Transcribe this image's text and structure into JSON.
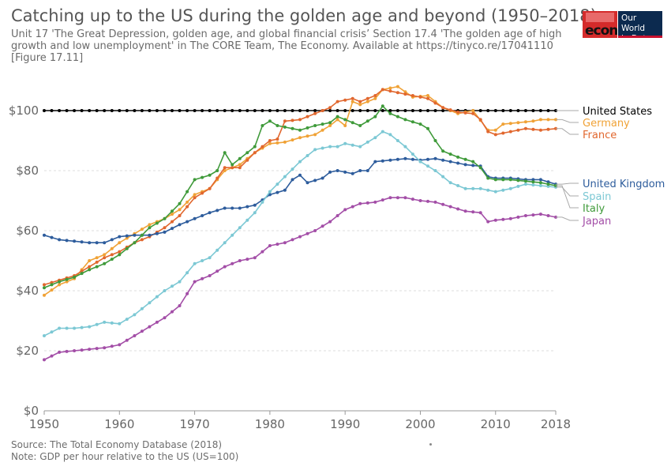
{
  "header": {
    "title": "Catching up to the US during the golden age and beyond (1950–2018)",
    "subtitle_line1": "Unit 17 'The Great Depression, golden age, and global financial crisis’ Section 17.4 'The golden age of high",
    "subtitle_line2": "growth and low unemployment' in The CORE Team, The Economy. Available at https://tinyco.re/17041110",
    "subtitle_line3": "[Figure 17.11]"
  },
  "logos": {
    "core_text": "econ",
    "owid_line1": "Our World",
    "owid_line2": "in Data"
  },
  "footer": {
    "source": "Source: The Total Economy Database (2018)",
    "note": "Note: GDP per hour relative to the US (US=100)"
  },
  "chart_data": {
    "type": "line",
    "title": "Catching up to the US during the golden age and beyond (1950–2018)",
    "xlabel": "",
    "ylabel": "",
    "xlim": [
      1950,
      2018
    ],
    "ylim": [
      0,
      105
    ],
    "x_ticks": [
      1950,
      1960,
      1970,
      1980,
      1990,
      2000,
      2010,
      2018
    ],
    "y_ticks": [
      {
        "value": 0,
        "label": "$0"
      },
      {
        "value": 20,
        "label": "$20"
      },
      {
        "value": 40,
        "label": "$40"
      },
      {
        "value": 60,
        "label": "$60"
      },
      {
        "value": 80,
        "label": "$80"
      },
      {
        "value": 100,
        "label": "$100"
      }
    ],
    "grid": "horizontal dashed",
    "legend": "right (line end labels)",
    "series": [
      {
        "name": "United States",
        "color": "#000000",
        "anchors": [
          [
            1950,
            100
          ],
          [
            2018,
            100
          ]
        ]
      },
      {
        "name": "Germany",
        "color": "#f0a236",
        "anchors": [
          [
            1950,
            38.5
          ],
          [
            1952,
            42
          ],
          [
            1954,
            44
          ],
          [
            1956,
            50
          ],
          [
            1958,
            52
          ],
          [
            1960,
            56
          ],
          [
            1962,
            59
          ],
          [
            1964,
            62
          ],
          [
            1966,
            64
          ],
          [
            1968,
            67
          ],
          [
            1970,
            72
          ],
          [
            1972,
            74
          ],
          [
            1974,
            80
          ],
          [
            1976,
            82
          ],
          [
            1978,
            86
          ],
          [
            1980,
            89
          ],
          [
            1982,
            89.5
          ],
          [
            1984,
            91
          ],
          [
            1986,
            92
          ],
          [
            1988,
            95
          ],
          [
            1989,
            97
          ],
          [
            1990,
            95
          ],
          [
            1991,
            103
          ],
          [
            1992,
            102
          ],
          [
            1994,
            104
          ],
          [
            1995,
            107
          ],
          [
            1997,
            108
          ],
          [
            1999,
            104.5
          ],
          [
            2001,
            105
          ],
          [
            2003,
            101
          ],
          [
            2005,
            99
          ],
          [
            2007,
            100
          ],
          [
            2009,
            93.5
          ],
          [
            2010,
            93.5
          ],
          [
            2011,
            95.5
          ],
          [
            2013,
            96
          ],
          [
            2015,
            96.5
          ],
          [
            2016,
            97
          ],
          [
            2018,
            97
          ]
        ]
      },
      {
        "name": "France",
        "color": "#e1672e",
        "anchors": [
          [
            1950,
            42
          ],
          [
            1952,
            43.5
          ],
          [
            1954,
            45
          ],
          [
            1956,
            48
          ],
          [
            1958,
            51
          ],
          [
            1960,
            53
          ],
          [
            1962,
            56
          ],
          [
            1964,
            58
          ],
          [
            1966,
            61
          ],
          [
            1968,
            65
          ],
          [
            1970,
            71
          ],
          [
            1972,
            74
          ],
          [
            1974,
            81
          ],
          [
            1976,
            81
          ],
          [
            1978,
            86
          ],
          [
            1980,
            90
          ],
          [
            1981,
            90.5
          ],
          [
            1982,
            96.5
          ],
          [
            1984,
            97
          ],
          [
            1986,
            99
          ],
          [
            1988,
            101
          ],
          [
            1989,
            103
          ],
          [
            1991,
            104
          ],
          [
            1992,
            103
          ],
          [
            1994,
            105
          ],
          [
            1995,
            107
          ],
          [
            1997,
            106
          ],
          [
            1999,
            105
          ],
          [
            2001,
            104
          ],
          [
            2003,
            101
          ],
          [
            2005,
            99.5
          ],
          [
            2007,
            99
          ],
          [
            2008,
            97
          ],
          [
            2009,
            93
          ],
          [
            2010,
            92
          ],
          [
            2012,
            93
          ],
          [
            2014,
            94
          ],
          [
            2016,
            93.5
          ],
          [
            2018,
            94
          ]
        ]
      },
      {
        "name": "United Kingdom",
        "color": "#2d5c9c",
        "anchors": [
          [
            1950,
            58.5
          ],
          [
            1952,
            57
          ],
          [
            1954,
            56.5
          ],
          [
            1956,
            56
          ],
          [
            1958,
            56
          ],
          [
            1960,
            58
          ],
          [
            1962,
            58.5
          ],
          [
            1964,
            58.5
          ],
          [
            1966,
            59.5
          ],
          [
            1968,
            62
          ],
          [
            1970,
            64
          ],
          [
            1972,
            66
          ],
          [
            1974,
            67.5
          ],
          [
            1976,
            67.5
          ],
          [
            1978,
            68.5
          ],
          [
            1980,
            72
          ],
          [
            1982,
            73.5
          ],
          [
            1983,
            77
          ],
          [
            1984,
            78.5
          ],
          [
            1985,
            76
          ],
          [
            1987,
            77.5
          ],
          [
            1988,
            79.5
          ],
          [
            1989,
            80
          ],
          [
            1991,
            79
          ],
          [
            1992,
            80
          ],
          [
            1993,
            80
          ],
          [
            1994,
            83
          ],
          [
            1996,
            83.5
          ],
          [
            1998,
            84
          ],
          [
            2000,
            83.5
          ],
          [
            2002,
            84
          ],
          [
            2004,
            83
          ],
          [
            2006,
            82
          ],
          [
            2008,
            81.5
          ],
          [
            2009,
            78
          ],
          [
            2010,
            77.5
          ],
          [
            2012,
            77.5
          ],
          [
            2014,
            77
          ],
          [
            2016,
            77
          ],
          [
            2018,
            75.5
          ]
        ]
      },
      {
        "name": "Spain",
        "color": "#7cc8d4",
        "anchors": [
          [
            1950,
            25
          ],
          [
            1952,
            27.5
          ],
          [
            1954,
            27.5
          ],
          [
            1956,
            28
          ],
          [
            1958,
            29.5
          ],
          [
            1960,
            29
          ],
          [
            1962,
            32
          ],
          [
            1964,
            36
          ],
          [
            1966,
            40
          ],
          [
            1968,
            43
          ],
          [
            1970,
            49
          ],
          [
            1972,
            51
          ],
          [
            1974,
            56
          ],
          [
            1976,
            61
          ],
          [
            1978,
            66
          ],
          [
            1980,
            73
          ],
          [
            1982,
            78
          ],
          [
            1984,
            83
          ],
          [
            1986,
            87
          ],
          [
            1988,
            88
          ],
          [
            1989,
            88
          ],
          [
            1990,
            89
          ],
          [
            1992,
            88
          ],
          [
            1994,
            91
          ],
          [
            1995,
            93
          ],
          [
            1996,
            92
          ],
          [
            1998,
            88
          ],
          [
            2000,
            83
          ],
          [
            2002,
            80
          ],
          [
            2004,
            76
          ],
          [
            2006,
            74
          ],
          [
            2008,
            74
          ],
          [
            2010,
            73
          ],
          [
            2012,
            74
          ],
          [
            2014,
            75.5
          ],
          [
            2016,
            75
          ],
          [
            2018,
            74.5
          ]
        ]
      },
      {
        "name": "Italy",
        "color": "#3f9a3a",
        "anchors": [
          [
            1950,
            41
          ],
          [
            1952,
            43
          ],
          [
            1954,
            44.5
          ],
          [
            1956,
            47
          ],
          [
            1958,
            49
          ],
          [
            1960,
            52
          ],
          [
            1962,
            56
          ],
          [
            1964,
            61
          ],
          [
            1966,
            64
          ],
          [
            1968,
            69
          ],
          [
            1970,
            77
          ],
          [
            1972,
            78.5
          ],
          [
            1973,
            80
          ],
          [
            1974,
            86
          ],
          [
            1975,
            82
          ],
          [
            1976,
            84
          ],
          [
            1978,
            88
          ],
          [
            1979,
            95
          ],
          [
            1980,
            96.5
          ],
          [
            1981,
            95
          ],
          [
            1983,
            94
          ],
          [
            1984,
            93.5
          ],
          [
            1986,
            95
          ],
          [
            1988,
            96
          ],
          [
            1989,
            98
          ],
          [
            1990,
            97
          ],
          [
            1992,
            95
          ],
          [
            1994,
            98
          ],
          [
            1995,
            101.5
          ],
          [
            1996,
            99
          ],
          [
            1998,
            97
          ],
          [
            2000,
            95.5
          ],
          [
            2001,
            94
          ],
          [
            2002,
            90
          ],
          [
            2003,
            86.5
          ],
          [
            2005,
            84.5
          ],
          [
            2007,
            83
          ],
          [
            2008,
            81
          ],
          [
            2009,
            77.5
          ],
          [
            2010,
            77
          ],
          [
            2012,
            77
          ],
          [
            2014,
            76.5
          ],
          [
            2016,
            76
          ],
          [
            2018,
            75
          ]
        ]
      },
      {
        "name": "Japan",
        "color": "#a34ea7",
        "anchors": [
          [
            1950,
            17
          ],
          [
            1952,
            19.5
          ],
          [
            1954,
            20
          ],
          [
            1956,
            20.5
          ],
          [
            1958,
            21
          ],
          [
            1960,
            22
          ],
          [
            1962,
            25
          ],
          [
            1964,
            28
          ],
          [
            1966,
            31
          ],
          [
            1968,
            35
          ],
          [
            1970,
            43
          ],
          [
            1972,
            45
          ],
          [
            1974,
            48
          ],
          [
            1976,
            50
          ],
          [
            1978,
            51
          ],
          [
            1980,
            55
          ],
          [
            1982,
            56
          ],
          [
            1984,
            58
          ],
          [
            1986,
            60
          ],
          [
            1988,
            63
          ],
          [
            1990,
            67
          ],
          [
            1992,
            69
          ],
          [
            1994,
            69.5
          ],
          [
            1996,
            71
          ],
          [
            1998,
            71
          ],
          [
            2000,
            70
          ],
          [
            2002,
            69.5
          ],
          [
            2004,
            68
          ],
          [
            2006,
            66.5
          ],
          [
            2008,
            66
          ],
          [
            2009,
            63
          ],
          [
            2010,
            63.5
          ],
          [
            2012,
            64
          ],
          [
            2014,
            65
          ],
          [
            2016,
            65.5
          ],
          [
            2018,
            64.5
          ]
        ]
      }
    ],
    "end_labels": [
      {
        "name": "United States",
        "color": "#000000"
      },
      {
        "name": "Germany",
        "color": "#f0a236"
      },
      {
        "name": "France",
        "color": "#e1672e"
      },
      {
        "name": "United Kingdom",
        "color": "#2d5c9c"
      },
      {
        "name": "Spain",
        "color": "#7cc8d4"
      },
      {
        "name": "Italy",
        "color": "#3f9a3a"
      },
      {
        "name": "Japan",
        "color": "#a34ea7"
      }
    ]
  }
}
